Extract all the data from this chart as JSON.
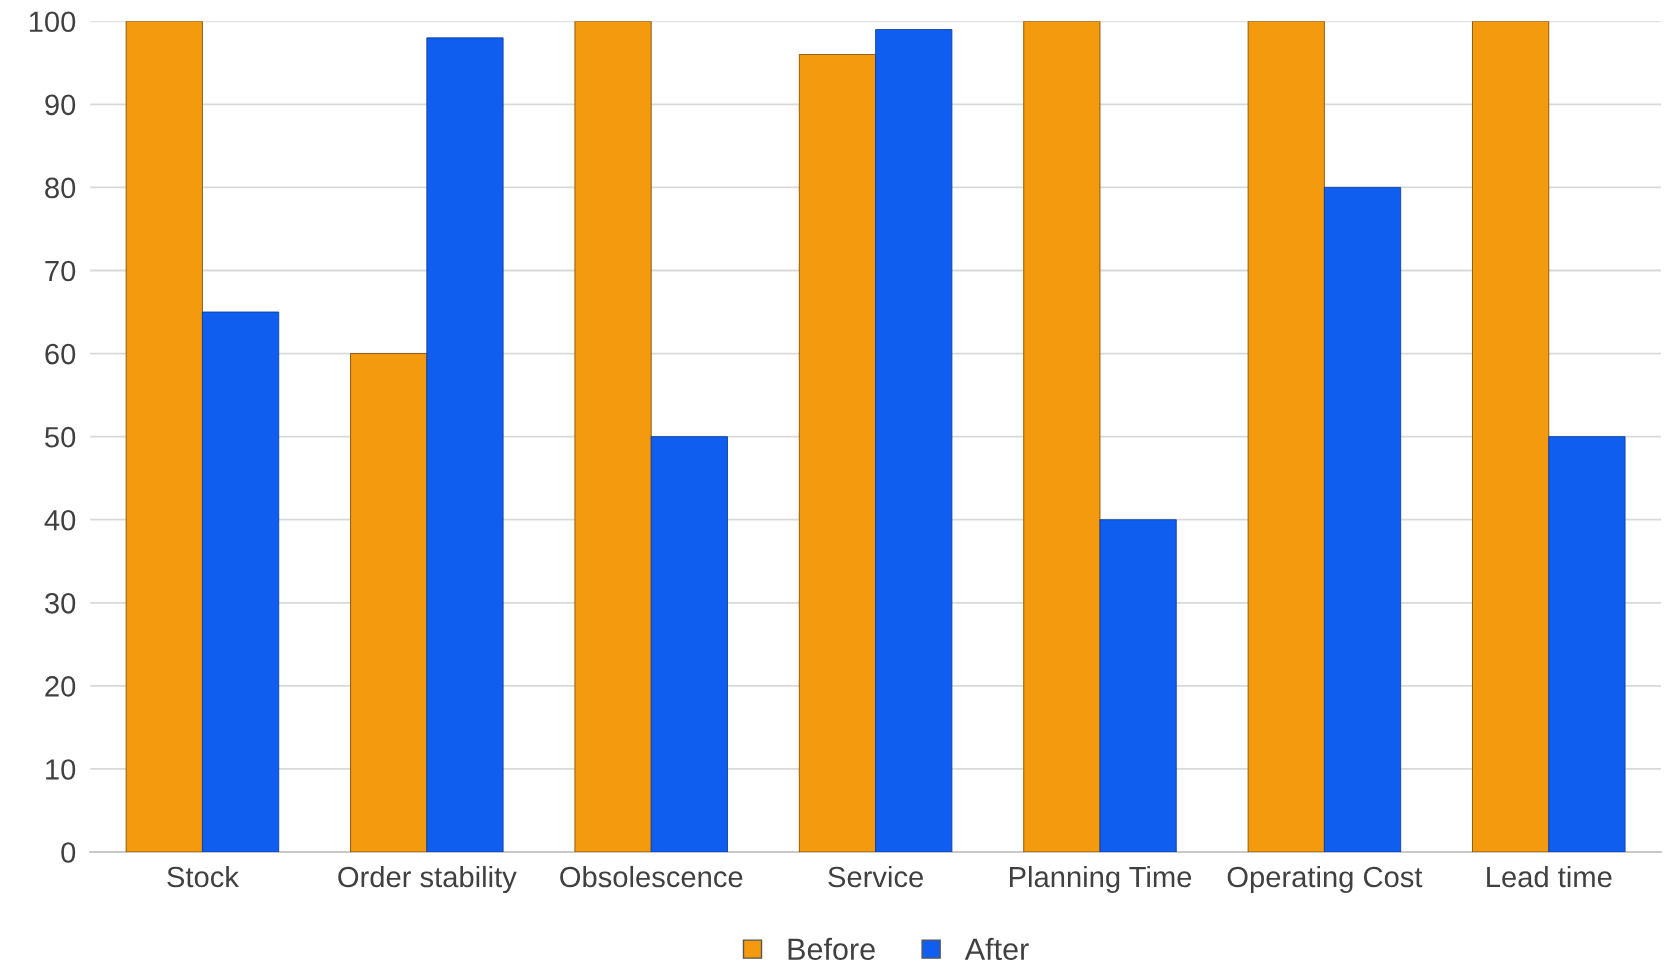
{
  "chart_data": {
    "type": "bar",
    "categories": [
      "Stock",
      "Order stability",
      "Obsolescence",
      "Service",
      "Planning Time",
      "Operating Cost",
      "Lead time"
    ],
    "series": [
      {
        "name": "Before",
        "color": "#f39a0e",
        "values": [
          100,
          60,
          100,
          96,
          100,
          100,
          100
        ]
      },
      {
        "name": "After",
        "color": "#0f5ef0",
        "values": [
          65,
          98,
          50,
          99,
          40,
          80,
          50
        ]
      }
    ],
    "ylim": [
      0,
      100
    ],
    "yticks": [
      0,
      10,
      20,
      30,
      40,
      50,
      60,
      70,
      80,
      90,
      100
    ],
    "grid": "y",
    "legend": "bottom"
  }
}
